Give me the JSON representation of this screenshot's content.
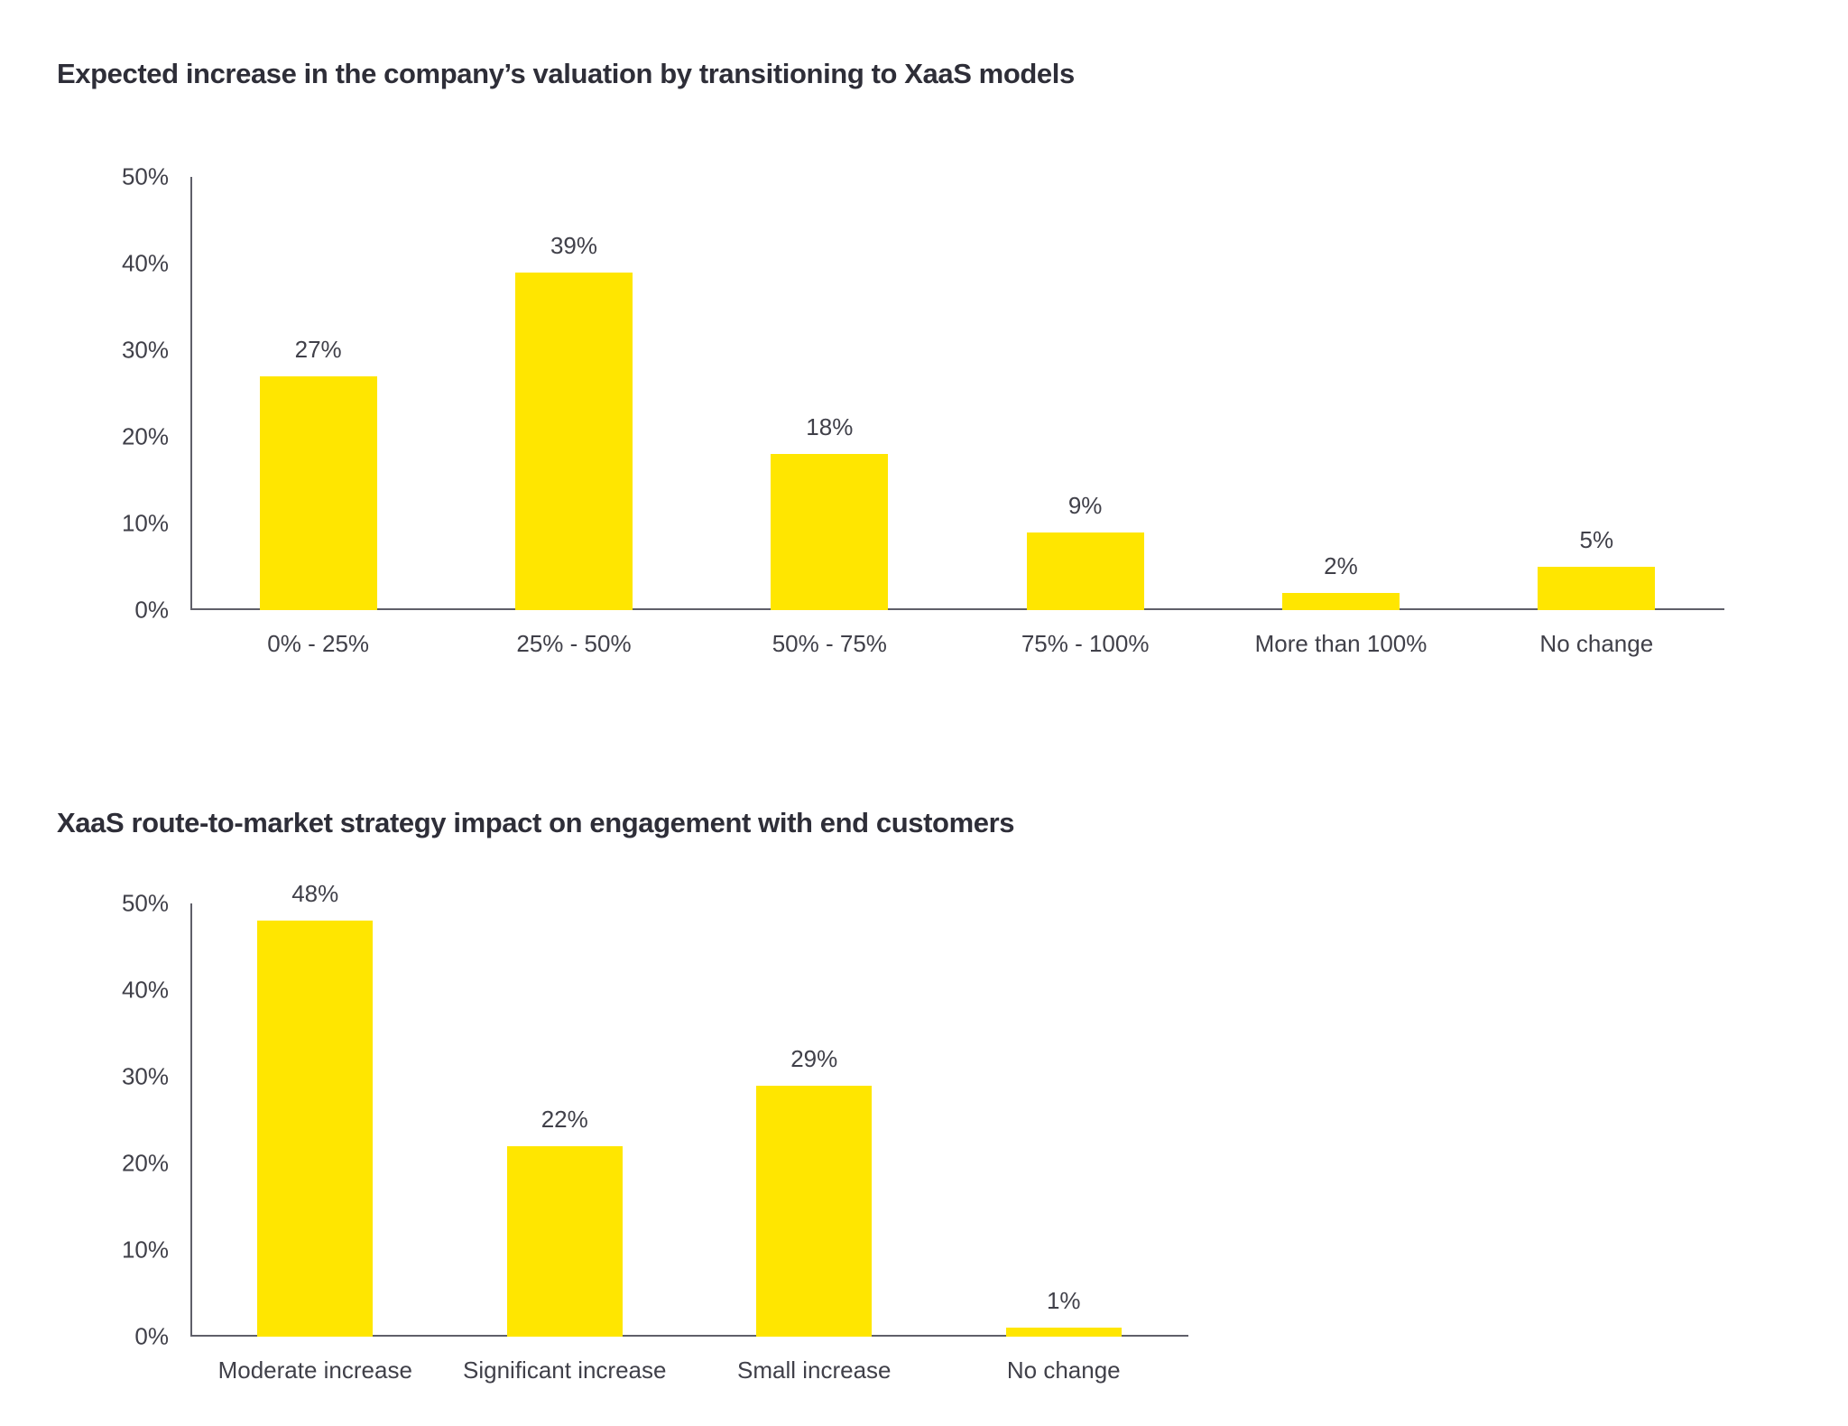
{
  "colors": {
    "bar": "#FFE600",
    "title": "#2E2E38",
    "text": "#404049",
    "axis": "#5F5F69",
    "background": "#FFFFFF"
  },
  "chart_data": [
    {
      "type": "bar",
      "title": "Expected increase in the company’s valuation by transitioning to XaaS models",
      "categories": [
        "0% - 25%",
        "25% - 50%",
        "50% - 75%",
        "75% - 100%",
        "More than 100%",
        "No change"
      ],
      "values": [
        27,
        39,
        18,
        9,
        2,
        5
      ],
      "value_labels": [
        "27%",
        "39%",
        "18%",
        "9%",
        "2%",
        "5%"
      ],
      "xlabel": "",
      "ylabel": "",
      "ylim": [
        0,
        50
      ],
      "yticks": [
        0,
        10,
        20,
        30,
        40,
        50
      ],
      "ytick_labels": [
        "0%",
        "10%",
        "20%",
        "30%",
        "40%",
        "50%"
      ],
      "grid": false,
      "legend": "none",
      "bar_color": "#FFE600"
    },
    {
      "type": "bar",
      "title": "XaaS route-to-market strategy impact on engagement with end customers",
      "categories": [
        "Moderate increase",
        "Significant increase",
        "Small increase",
        "No change"
      ],
      "values": [
        48,
        22,
        29,
        1
      ],
      "value_labels": [
        "48%",
        "22%",
        "29%",
        "1%"
      ],
      "xlabel": "",
      "ylabel": "",
      "ylim": [
        0,
        50
      ],
      "yticks": [
        0,
        10,
        20,
        30,
        40,
        50
      ],
      "ytick_labels": [
        "0%",
        "10%",
        "20%",
        "30%",
        "40%",
        "50%"
      ],
      "grid": false,
      "legend": "none",
      "bar_color": "#FFE600"
    }
  ]
}
